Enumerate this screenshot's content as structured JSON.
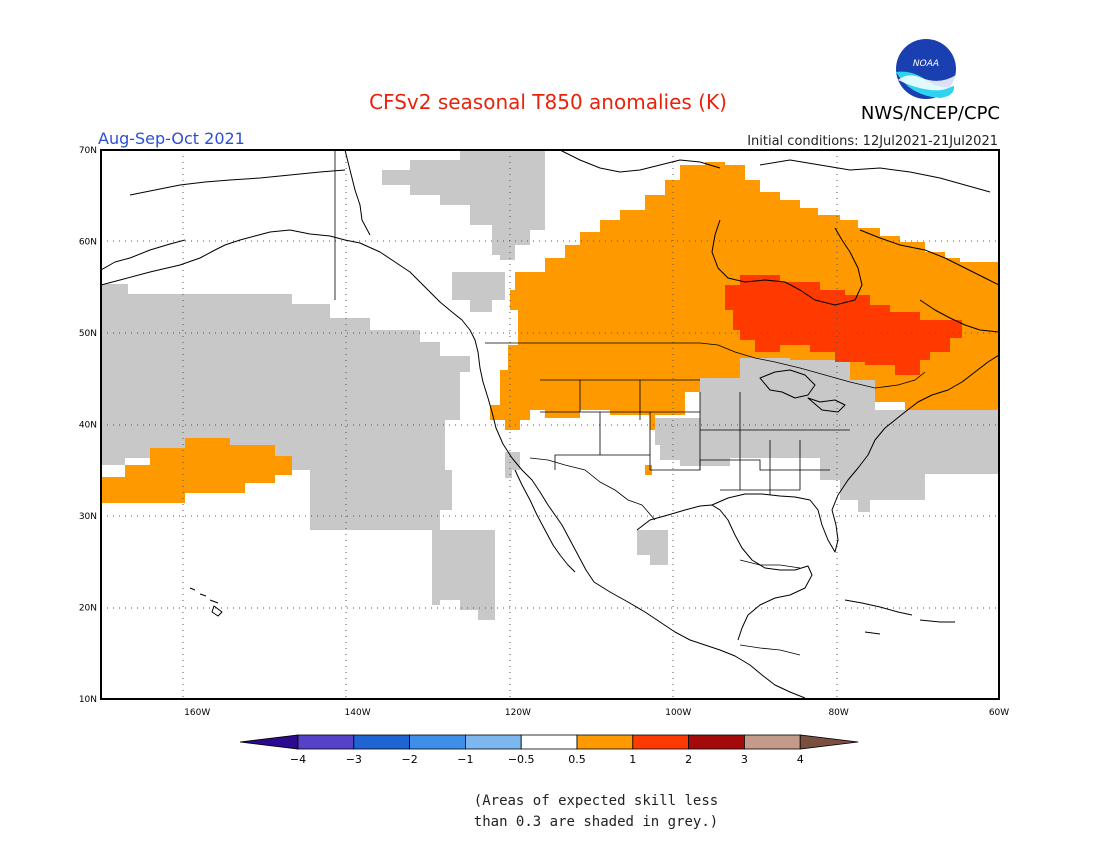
{
  "header": {
    "title": "CFSv2 seasonal T850 anomalies (K)",
    "season": "Aug-Sep-Oct 2021",
    "initial_conditions": "Initial conditions: 12Jul2021-21Jul2021",
    "organization": "NWS/NCEP/CPC",
    "logo_text": "NOAA"
  },
  "map": {
    "lon_range": [
      -172,
      -60
    ],
    "lat_range": [
      10,
      70
    ],
    "lon_ticks": [
      {
        "value": -160,
        "label": "160W"
      },
      {
        "value": -140,
        "label": "140W"
      },
      {
        "value": -120,
        "label": "120W"
      },
      {
        "value": -100,
        "label": "100W"
      },
      {
        "value": -80,
        "label": "80W"
      },
      {
        "value": -60,
        "label": "60W"
      }
    ],
    "lat_ticks": [
      {
        "value": 10,
        "label": "10N"
      },
      {
        "value": 20,
        "label": "20N"
      },
      {
        "value": 30,
        "label": "30N"
      },
      {
        "value": 40,
        "label": "40N"
      },
      {
        "value": 50,
        "label": "50N"
      },
      {
        "value": 60,
        "label": "60N"
      },
      {
        "value": 70,
        "label": "70N"
      }
    ],
    "grid": true
  },
  "colorbar": {
    "colors": [
      "#2c0a8f",
      "#5542c8",
      "#1e64d2",
      "#3e8fea",
      "#7db7ef",
      "#ffffff",
      "#ff9900",
      "#ff3a00",
      "#a50a0a",
      "#c49a8b",
      "#7a4f3f"
    ],
    "labels": [
      "−4",
      "−3",
      "−2",
      "−1",
      "−0.5",
      "0.5",
      "1",
      "2",
      "3",
      "4"
    ]
  },
  "note": {
    "line1": "(Areas of expected skill less",
    "line2": "than 0.3 are shaded in grey.)"
  },
  "colors": {
    "grey": "#c8c8c8",
    "orange": "#ff9900",
    "red": "#ff3a00"
  }
}
